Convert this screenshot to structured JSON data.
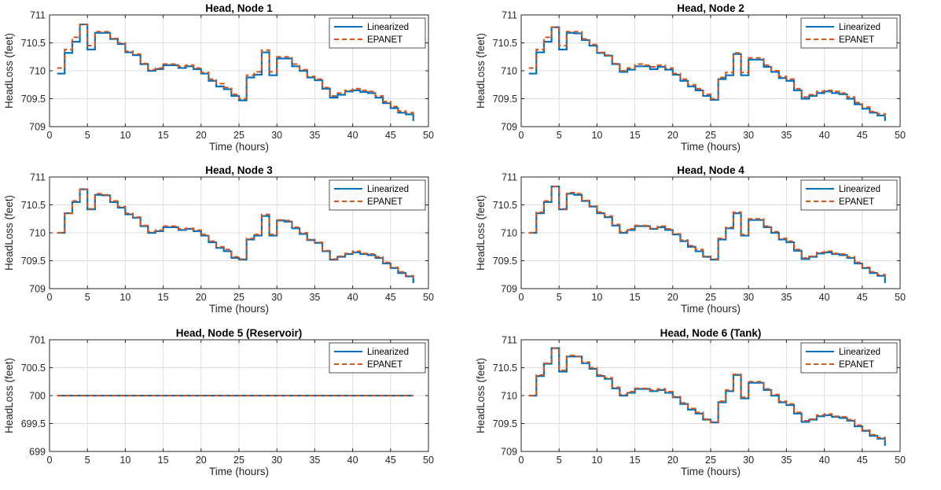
{
  "chart_data": [
    {
      "type": "line",
      "title": "Head, Node 1",
      "xlabel": "Time (hours)",
      "ylabel": "HeadLoss (feet)",
      "xlim": [
        0,
        50
      ],
      "ylim": [
        709,
        711
      ],
      "xticks": [
        0,
        5,
        10,
        15,
        20,
        25,
        30,
        35,
        40,
        45,
        50
      ],
      "yticks": [
        709,
        709.5,
        710,
        710.5,
        711
      ],
      "grid": true,
      "legend_position": "top-right",
      "step": true,
      "x": [
        1,
        2,
        3,
        4,
        5,
        6,
        7,
        8,
        9,
        10,
        11,
        12,
        13,
        14,
        15,
        16,
        17,
        18,
        19,
        20,
        21,
        22,
        23,
        24,
        25,
        26,
        27,
        28,
        29,
        30,
        31,
        32,
        33,
        34,
        35,
        36,
        37,
        38,
        39,
        40,
        41,
        42,
        43,
        44,
        45,
        46,
        47,
        48
      ],
      "series": [
        {
          "name": "Linearized",
          "color": "#0072BD",
          "style": "solid",
          "values": [
            709.95,
            710.32,
            710.52,
            710.83,
            710.38,
            710.68,
            710.68,
            710.57,
            710.48,
            710.33,
            710.28,
            710.12,
            710.0,
            710.03,
            710.1,
            710.1,
            710.05,
            710.08,
            710.03,
            709.95,
            709.82,
            709.72,
            709.67,
            709.55,
            709.47,
            709.88,
            709.93,
            710.33,
            709.92,
            710.22,
            710.22,
            710.08,
            710.0,
            709.88,
            709.83,
            709.68,
            709.52,
            709.57,
            709.63,
            709.65,
            709.62,
            709.6,
            709.52,
            709.42,
            709.33,
            709.25,
            709.22,
            709.1
          ]
        },
        {
          "name": "EPANET",
          "color": "#D95319",
          "style": "dashed",
          "values": [
            710.05,
            710.38,
            710.6,
            710.83,
            710.45,
            710.7,
            710.7,
            710.58,
            710.5,
            710.35,
            710.3,
            710.13,
            710.02,
            710.05,
            710.12,
            710.12,
            710.08,
            710.1,
            710.05,
            709.97,
            709.85,
            709.77,
            709.7,
            709.58,
            709.5,
            709.92,
            709.98,
            710.37,
            709.98,
            710.25,
            710.25,
            710.12,
            710.02,
            709.9,
            709.85,
            709.7,
            709.55,
            709.6,
            709.65,
            709.68,
            709.65,
            709.63,
            709.55,
            709.45,
            709.36,
            709.28,
            709.25,
            709.15
          ]
        }
      ]
    },
    {
      "type": "line",
      "title": "Head, Node 2",
      "xlabel": "Time (hours)",
      "ylabel": "HeadLoss (feet)",
      "xlim": [
        0,
        50
      ],
      "ylim": [
        709,
        711
      ],
      "xticks": [
        0,
        5,
        10,
        15,
        20,
        25,
        30,
        35,
        40,
        45,
        50
      ],
      "yticks": [
        709,
        709.5,
        710,
        710.5,
        711
      ],
      "grid": true,
      "legend_position": "top-right",
      "step": true,
      "x": [
        1,
        2,
        3,
        4,
        5,
        6,
        7,
        8,
        9,
        10,
        11,
        12,
        13,
        14,
        15,
        16,
        17,
        18,
        19,
        20,
        21,
        22,
        23,
        24,
        25,
        26,
        27,
        28,
        29,
        30,
        31,
        32,
        33,
        34,
        35,
        36,
        37,
        38,
        39,
        40,
        41,
        42,
        43,
        44,
        45,
        46,
        47,
        48
      ],
      "series": [
        {
          "name": "Linearized",
          "color": "#0072BD",
          "style": "solid",
          "values": [
            709.95,
            710.33,
            710.52,
            710.78,
            710.38,
            710.68,
            710.67,
            710.55,
            710.45,
            710.32,
            710.27,
            710.12,
            709.98,
            710.02,
            710.08,
            710.08,
            710.03,
            710.07,
            710.02,
            709.93,
            709.82,
            709.72,
            709.65,
            709.55,
            709.48,
            709.85,
            709.92,
            710.3,
            709.92,
            710.2,
            710.2,
            710.07,
            709.98,
            709.87,
            709.82,
            709.65,
            709.5,
            709.55,
            709.6,
            709.63,
            709.6,
            709.58,
            709.5,
            709.4,
            709.32,
            709.25,
            709.2,
            709.1
          ]
        },
        {
          "name": "EPANET",
          "color": "#D95319",
          "style": "dashed",
          "values": [
            710.05,
            710.38,
            710.6,
            710.78,
            710.45,
            710.7,
            710.7,
            710.57,
            710.47,
            710.33,
            710.28,
            710.13,
            710.0,
            710.05,
            710.12,
            710.1,
            710.07,
            710.1,
            710.05,
            709.95,
            709.85,
            709.75,
            709.68,
            709.58,
            709.5,
            709.88,
            709.97,
            710.32,
            709.97,
            710.23,
            710.23,
            710.1,
            710.0,
            709.9,
            709.85,
            709.68,
            709.53,
            709.57,
            709.63,
            709.65,
            709.63,
            709.6,
            709.53,
            709.43,
            709.35,
            709.27,
            709.23,
            709.15
          ]
        }
      ]
    },
    {
      "type": "line",
      "title": "Head, Node 3",
      "xlabel": "Time (hours)",
      "ylabel": "HeadLoss (feet)",
      "xlim": [
        0,
        50
      ],
      "ylim": [
        709,
        711
      ],
      "xticks": [
        0,
        5,
        10,
        15,
        20,
        25,
        30,
        35,
        40,
        45,
        50
      ],
      "yticks": [
        709,
        709.5,
        710,
        710.5,
        711
      ],
      "grid": true,
      "legend_position": "top-right",
      "step": true,
      "x": [
        1,
        2,
        3,
        4,
        5,
        6,
        7,
        8,
        9,
        10,
        11,
        12,
        13,
        14,
        15,
        16,
        17,
        18,
        19,
        20,
        21,
        22,
        23,
        24,
        25,
        26,
        27,
        28,
        29,
        30,
        31,
        32,
        33,
        34,
        35,
        36,
        37,
        38,
        39,
        40,
        41,
        42,
        43,
        44,
        45,
        46,
        47,
        48
      ],
      "series": [
        {
          "name": "Linearized",
          "color": "#0072BD",
          "style": "solid",
          "values": [
            710.0,
            710.35,
            710.55,
            710.78,
            710.42,
            710.68,
            710.67,
            710.55,
            710.45,
            710.33,
            710.27,
            710.12,
            710.0,
            710.03,
            710.1,
            710.1,
            710.05,
            710.07,
            710.03,
            709.95,
            709.83,
            709.73,
            709.67,
            709.55,
            709.52,
            709.88,
            709.95,
            710.3,
            709.95,
            710.22,
            710.2,
            710.08,
            709.98,
            709.87,
            709.82,
            709.67,
            709.52,
            709.57,
            709.62,
            709.65,
            709.62,
            709.6,
            709.55,
            709.45,
            709.37,
            709.28,
            709.22,
            709.1
          ]
        },
        {
          "name": "EPANET",
          "color": "#D95319",
          "style": "dashed",
          "values": [
            710.0,
            710.35,
            710.57,
            710.78,
            710.43,
            710.7,
            710.68,
            710.57,
            710.47,
            710.35,
            710.28,
            710.13,
            710.02,
            710.05,
            710.12,
            710.12,
            710.07,
            710.08,
            710.05,
            709.97,
            709.85,
            709.75,
            709.7,
            709.57,
            709.53,
            709.9,
            709.97,
            710.33,
            709.97,
            710.23,
            710.22,
            710.1,
            710.0,
            709.88,
            709.83,
            709.68,
            709.53,
            709.58,
            709.63,
            709.67,
            709.63,
            709.62,
            709.57,
            709.47,
            709.38,
            709.3,
            709.23,
            709.15
          ]
        }
      ]
    },
    {
      "type": "line",
      "title": "Head, Node 4",
      "xlabel": "Time (hours)",
      "ylabel": "HeadLoss (feet)",
      "xlim": [
        0,
        50
      ],
      "ylim": [
        709,
        711
      ],
      "xticks": [
        0,
        5,
        10,
        15,
        20,
        25,
        30,
        35,
        40,
        45,
        50
      ],
      "yticks": [
        709,
        709.5,
        710,
        710.5,
        711
      ],
      "grid": true,
      "legend_position": "top-right",
      "step": true,
      "x": [
        1,
        2,
        3,
        4,
        5,
        6,
        7,
        8,
        9,
        10,
        11,
        12,
        13,
        14,
        15,
        16,
        17,
        18,
        19,
        20,
        21,
        22,
        23,
        24,
        25,
        26,
        27,
        28,
        29,
        30,
        31,
        32,
        33,
        34,
        35,
        36,
        37,
        38,
        39,
        40,
        41,
        42,
        43,
        44,
        45,
        46,
        47,
        48
      ],
      "series": [
        {
          "name": "Linearized",
          "color": "#0072BD",
          "style": "solid",
          "values": [
            710.0,
            710.35,
            710.55,
            710.83,
            710.42,
            710.7,
            710.68,
            710.57,
            710.47,
            710.35,
            710.28,
            710.13,
            710.0,
            710.05,
            710.12,
            710.12,
            710.07,
            710.1,
            710.05,
            709.97,
            709.85,
            709.75,
            709.67,
            709.57,
            709.52,
            709.88,
            710.08,
            710.35,
            709.95,
            710.23,
            710.23,
            710.1,
            710.0,
            709.88,
            709.83,
            709.68,
            709.53,
            709.57,
            709.63,
            709.65,
            709.62,
            709.6,
            709.55,
            709.45,
            709.37,
            709.28,
            709.23,
            709.1
          ]
        },
        {
          "name": "EPANET",
          "color": "#D95319",
          "style": "dashed",
          "values": [
            710.0,
            710.37,
            710.57,
            710.83,
            710.43,
            710.72,
            710.7,
            710.58,
            710.48,
            710.37,
            710.3,
            710.15,
            710.02,
            710.07,
            710.13,
            710.13,
            710.08,
            710.12,
            710.07,
            709.98,
            709.87,
            709.77,
            709.7,
            709.58,
            709.53,
            709.9,
            710.1,
            710.37,
            709.97,
            710.25,
            710.25,
            710.12,
            710.02,
            709.9,
            709.85,
            709.7,
            709.55,
            709.58,
            709.65,
            709.67,
            709.63,
            709.62,
            709.57,
            709.47,
            709.38,
            709.3,
            709.25,
            709.15
          ]
        }
      ]
    },
    {
      "type": "line",
      "title": "Head, Node 5 (Reservoir)",
      "xlabel": "Time (hours)",
      "ylabel": "HeadLoss (feet)",
      "xlim": [
        0,
        50
      ],
      "ylim": [
        699,
        701
      ],
      "xticks": [
        0,
        5,
        10,
        15,
        20,
        25,
        30,
        35,
        40,
        45,
        50
      ],
      "yticks": [
        699,
        699.5,
        700,
        700.5,
        701
      ],
      "grid": true,
      "legend_position": "top-right",
      "step": true,
      "x": [
        1,
        2,
        3,
        4,
        5,
        6,
        7,
        8,
        9,
        10,
        11,
        12,
        13,
        14,
        15,
        16,
        17,
        18,
        19,
        20,
        21,
        22,
        23,
        24,
        25,
        26,
        27,
        28,
        29,
        30,
        31,
        32,
        33,
        34,
        35,
        36,
        37,
        38,
        39,
        40,
        41,
        42,
        43,
        44,
        45,
        46,
        47,
        48
      ],
      "series": [
        {
          "name": "Linearized",
          "color": "#0072BD",
          "style": "solid",
          "values": [
            700,
            700,
            700,
            700,
            700,
            700,
            700,
            700,
            700,
            700,
            700,
            700,
            700,
            700,
            700,
            700,
            700,
            700,
            700,
            700,
            700,
            700,
            700,
            700,
            700,
            700,
            700,
            700,
            700,
            700,
            700,
            700,
            700,
            700,
            700,
            700,
            700,
            700,
            700,
            700,
            700,
            700,
            700,
            700,
            700,
            700,
            700,
            700
          ]
        },
        {
          "name": "EPANET",
          "color": "#D95319",
          "style": "dashed",
          "values": [
            700,
            700,
            700,
            700,
            700,
            700,
            700,
            700,
            700,
            700,
            700,
            700,
            700,
            700,
            700,
            700,
            700,
            700,
            700,
            700,
            700,
            700,
            700,
            700,
            700,
            700,
            700,
            700,
            700,
            700,
            700,
            700,
            700,
            700,
            700,
            700,
            700,
            700,
            700,
            700,
            700,
            700,
            700,
            700,
            700,
            700,
            700,
            700
          ]
        }
      ]
    },
    {
      "type": "line",
      "title": "Head, Node 6 (Tank)",
      "xlabel": "Time (hours)",
      "ylabel": "HeadLoss (feet)",
      "xlim": [
        0,
        50
      ],
      "ylim": [
        709,
        711
      ],
      "xticks": [
        0,
        5,
        10,
        15,
        20,
        25,
        30,
        35,
        40,
        45,
        50
      ],
      "yticks": [
        709,
        709.5,
        710,
        710.5,
        711
      ],
      "grid": true,
      "legend_position": "top-right",
      "step": true,
      "x": [
        1,
        2,
        3,
        4,
        5,
        6,
        7,
        8,
        9,
        10,
        11,
        12,
        13,
        14,
        15,
        16,
        17,
        18,
        19,
        20,
        21,
        22,
        23,
        24,
        25,
        26,
        27,
        28,
        29,
        30,
        31,
        32,
        33,
        34,
        35,
        36,
        37,
        38,
        39,
        40,
        41,
        42,
        43,
        44,
        45,
        46,
        47,
        48
      ],
      "series": [
        {
          "name": "Linearized",
          "color": "#0072BD",
          "style": "solid",
          "values": [
            710.0,
            710.35,
            710.57,
            710.85,
            710.43,
            710.7,
            710.7,
            710.58,
            710.48,
            710.35,
            710.3,
            710.13,
            710.0,
            710.05,
            710.12,
            710.12,
            710.08,
            710.1,
            710.05,
            709.97,
            709.85,
            709.75,
            709.68,
            709.57,
            709.52,
            709.88,
            710.08,
            710.37,
            709.95,
            710.23,
            710.23,
            710.1,
            710.0,
            709.88,
            709.83,
            709.68,
            709.53,
            709.57,
            709.63,
            709.65,
            709.62,
            709.6,
            709.55,
            709.45,
            709.37,
            709.28,
            709.23,
            709.1
          ]
        },
        {
          "name": "EPANET",
          "color": "#D95319",
          "style": "dashed",
          "values": [
            710.0,
            710.37,
            710.58,
            710.85,
            710.45,
            710.72,
            710.7,
            710.6,
            710.5,
            710.37,
            710.32,
            710.15,
            710.02,
            710.07,
            710.13,
            710.13,
            710.1,
            710.12,
            710.07,
            709.98,
            709.87,
            709.77,
            709.7,
            709.58,
            709.53,
            709.9,
            710.1,
            710.38,
            709.97,
            710.25,
            710.25,
            710.12,
            710.02,
            709.9,
            709.85,
            709.7,
            709.55,
            709.58,
            709.65,
            709.67,
            709.63,
            709.62,
            709.57,
            709.47,
            709.38,
            709.3,
            709.25,
            709.15
          ]
        }
      ]
    }
  ]
}
